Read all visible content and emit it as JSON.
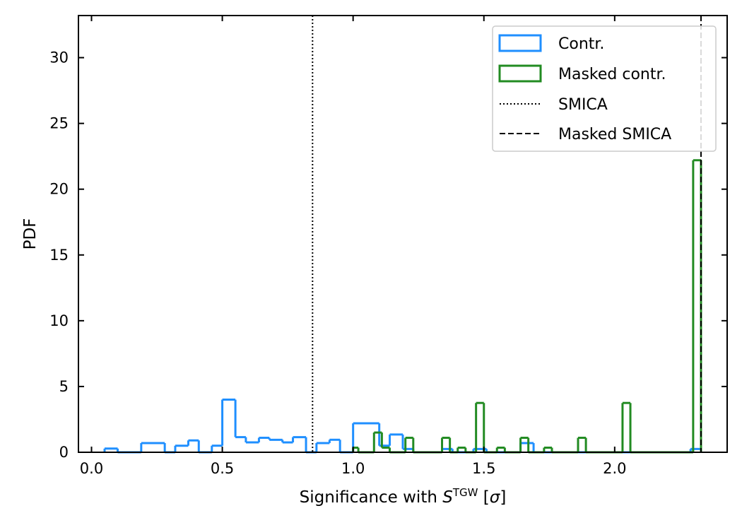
{
  "chart_data": {
    "type": "histogram-step",
    "xlabel": {
      "prefix": "Significance with ",
      "symbol": "S",
      "superscript": "TGW",
      "suffix_open": " [",
      "sigma": "σ",
      "suffix_close": "]"
    },
    "ylabel": "PDF",
    "xlim": [
      -0.05,
      2.43
    ],
    "ylim": [
      0,
      33.2
    ],
    "xticks": [
      0.0,
      0.5,
      1.0,
      1.5,
      2.0
    ],
    "xtick_labels": [
      "0.0",
      "0.5",
      "1.0",
      "1.5",
      "2.0"
    ],
    "yticks": [
      0,
      5,
      10,
      15,
      20,
      25,
      30
    ],
    "ytick_labels": [
      "0",
      "5",
      "10",
      "15",
      "20",
      "25",
      "30"
    ],
    "legend_position": "top-right",
    "series": [
      {
        "name": "Contr.",
        "color": "#1f8fff",
        "bins": [
          [
            0.05,
            0.1,
            0.28
          ],
          [
            0.1,
            0.19,
            0.0
          ],
          [
            0.19,
            0.28,
            0.7
          ],
          [
            0.28,
            0.32,
            0.0
          ],
          [
            0.32,
            0.37,
            0.5
          ],
          [
            0.37,
            0.41,
            0.9
          ],
          [
            0.41,
            0.46,
            0.0
          ],
          [
            0.46,
            0.5,
            0.5
          ],
          [
            0.5,
            0.55,
            4.0
          ],
          [
            0.55,
            0.59,
            1.15
          ],
          [
            0.59,
            0.64,
            0.75
          ],
          [
            0.64,
            0.68,
            1.1
          ],
          [
            0.68,
            0.73,
            0.95
          ],
          [
            0.73,
            0.77,
            0.75
          ],
          [
            0.77,
            0.82,
            1.15
          ],
          [
            0.82,
            0.86,
            0.0
          ],
          [
            0.86,
            0.91,
            0.7
          ],
          [
            0.91,
            0.95,
            0.95
          ],
          [
            0.95,
            1.0,
            0.0
          ],
          [
            1.0,
            1.1,
            2.2
          ],
          [
            1.1,
            1.14,
            0.5
          ],
          [
            1.14,
            1.19,
            1.35
          ],
          [
            1.19,
            1.23,
            0.25
          ],
          [
            1.23,
            1.34,
            0.0
          ],
          [
            1.34,
            1.38,
            0.25
          ],
          [
            1.38,
            1.46,
            0.0
          ],
          [
            1.46,
            1.51,
            0.25
          ],
          [
            1.51,
            1.64,
            0.0
          ],
          [
            1.64,
            1.69,
            0.7
          ],
          [
            1.69,
            2.29,
            0.0
          ],
          [
            2.29,
            2.33,
            0.25
          ]
        ]
      },
      {
        "name": "Masked contr.",
        "color": "#228b22",
        "bins": [
          [
            1.0,
            1.02,
            0.35
          ],
          [
            1.02,
            1.08,
            0.0
          ],
          [
            1.08,
            1.11,
            1.5
          ],
          [
            1.11,
            1.14,
            0.35
          ],
          [
            1.14,
            1.2,
            0.0
          ],
          [
            1.2,
            1.23,
            1.1
          ],
          [
            1.23,
            1.34,
            0.0
          ],
          [
            1.34,
            1.37,
            1.1
          ],
          [
            1.37,
            1.4,
            0.0
          ],
          [
            1.4,
            1.43,
            0.35
          ],
          [
            1.43,
            1.47,
            0.0
          ],
          [
            1.47,
            1.5,
            3.75
          ],
          [
            1.5,
            1.55,
            0.0
          ],
          [
            1.55,
            1.58,
            0.35
          ],
          [
            1.58,
            1.64,
            0.0
          ],
          [
            1.64,
            1.67,
            1.1
          ],
          [
            1.67,
            1.73,
            0.0
          ],
          [
            1.73,
            1.76,
            0.35
          ],
          [
            1.76,
            1.86,
            0.0
          ],
          [
            1.86,
            1.89,
            1.1
          ],
          [
            1.89,
            2.03,
            0.0
          ],
          [
            2.03,
            2.06,
            3.75
          ],
          [
            2.06,
            2.3,
            0.0
          ],
          [
            2.3,
            2.33,
            22.2
          ]
        ]
      }
    ],
    "vlines": [
      {
        "name": "SMICA",
        "x": 0.845,
        "style": "dotted",
        "color": "#000000"
      },
      {
        "name": "Masked SMICA",
        "x": 2.33,
        "style": "dashed",
        "color": "#000000"
      }
    ]
  }
}
